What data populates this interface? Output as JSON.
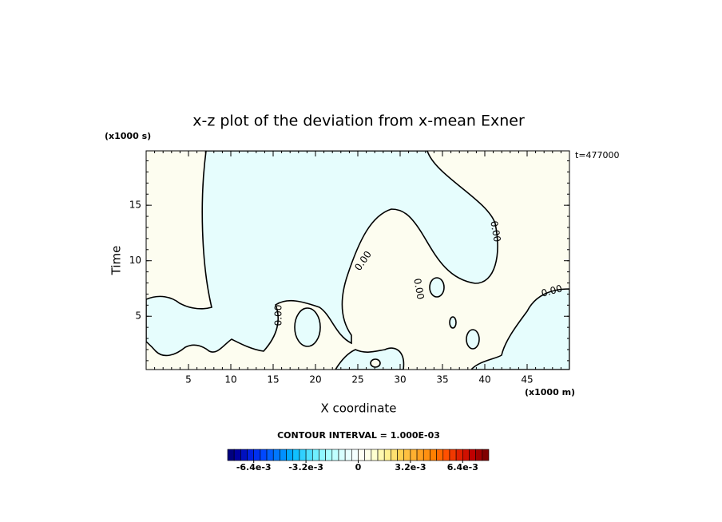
{
  "chart_data": {
    "type": "contour",
    "title": "x-z plot of the deviation from x-mean Exner",
    "xlabel": "X coordinate",
    "ylabel": "Time",
    "x_unit": "(x1000 m)",
    "y_unit": "(x1000 s)",
    "time_label": "t=477000",
    "contour_interval_label": "CONTOUR INTERVAL = 1.000E-03",
    "contour_labels": [
      "0.00",
      "0.00",
      "0.00",
      "0.00",
      "0.00"
    ],
    "xlim": [
      0,
      50
    ],
    "ylim": [
      0.2,
      19.9
    ],
    "xticks": [
      5,
      10,
      15,
      20,
      25,
      30,
      35,
      40,
      45
    ],
    "yticks": [
      5,
      10,
      15
    ],
    "minor_tick_step": 1,
    "colorbar": {
      "clim": [
        -0.008,
        0.008
      ],
      "ticks": [
        {
          "value": -0.0064,
          "label": "-6.4e-3"
        },
        {
          "value": -0.0032,
          "label": "-3.2e-3"
        },
        0,
        {
          "value": 0.0032,
          "label": "3.2e-3"
        },
        {
          "value": 0.0064,
          "label": "6.4e-3"
        }
      ],
      "colors": [
        "#00007f",
        "#0000a0",
        "#0010c0",
        "#0020e0",
        "#0030f0",
        "#0048ff",
        "#0060ff",
        "#0078ff",
        "#0090ff",
        "#00a8ff",
        "#10c0ff",
        "#30d0ff",
        "#50e0ff",
        "#70f0ff",
        "#90f8ff",
        "#a8ffff",
        "#c0ffff",
        "#d8ffff",
        "#e8ffff",
        "#f4ffff",
        "#fffff4",
        "#ffffe8",
        "#ffffd0",
        "#fff8b0",
        "#fff090",
        "#ffe070",
        "#ffd050",
        "#ffc040",
        "#ffb030",
        "#ffa020",
        "#ff9010",
        "#ff8000",
        "#ff6800",
        "#ff5000",
        "#f03800",
        "#e02000",
        "#d01000",
        "#c00000",
        "#a00000",
        "#800000"
      ]
    }
  }
}
